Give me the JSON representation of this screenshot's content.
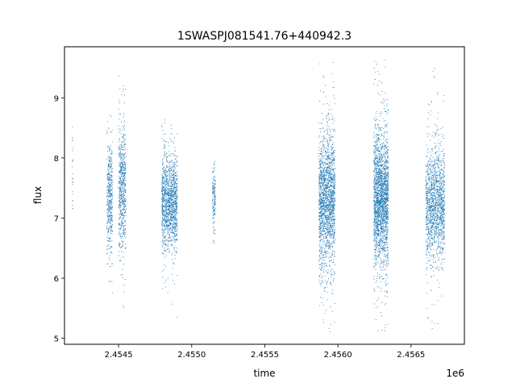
{
  "chart_data": {
    "type": "scatter",
    "title": "1SWASPJ081541.76+440942.3",
    "xlabel": "time",
    "ylabel": "flux",
    "x_offset_label": "1e6",
    "xlim": [
      2454130,
      2456865
    ],
    "ylim": [
      4.9,
      9.85
    ],
    "x_ticks": [
      {
        "value": 2454500,
        "label": "2.4545"
      },
      {
        "value": 2455000,
        "label": "2.4550"
      },
      {
        "value": 2455500,
        "label": "2.4555"
      },
      {
        "value": 2456000,
        "label": "2.4560"
      },
      {
        "value": 2456500,
        "label": "2.4565"
      }
    ],
    "y_ticks": [
      {
        "value": 5,
        "label": "5"
      },
      {
        "value": 6,
        "label": "6"
      },
      {
        "value": 7,
        "label": "7"
      },
      {
        "value": 8,
        "label": "8"
      },
      {
        "value": 9,
        "label": "9"
      }
    ],
    "grid": false,
    "marker_color": "#1f77b4",
    "series": [
      {
        "observing_seasons": [
          {
            "x_range": [
              2454184,
              2454186
            ],
            "y_center": 7.7,
            "y_spread": 0.5,
            "y_min": 7.1,
            "y_max": 8.65,
            "points": 25
          },
          {
            "x_range": [
              2454420,
              2454458
            ],
            "y_center": 7.35,
            "y_spread": 0.45,
            "y_min": 5.55,
            "y_max": 8.9,
            "points": 450
          },
          {
            "x_range": [
              2454500,
              2454550
            ],
            "y_center": 7.45,
            "y_spread": 0.55,
            "y_min": 5.15,
            "y_max": 9.55,
            "points": 650
          },
          {
            "x_range": [
              2454795,
              2454902
            ],
            "y_center": 7.25,
            "y_spread": 0.4,
            "y_min": 5.3,
            "y_max": 8.65,
            "points": 1400
          },
          {
            "x_range": [
              2455142,
              2455162
            ],
            "y_center": 7.35,
            "y_spread": 0.3,
            "y_min": 6.55,
            "y_max": 7.95,
            "points": 160
          },
          {
            "x_range": [
              2455870,
              2455980
            ],
            "y_center": 7.3,
            "y_spread": 0.55,
            "y_min": 5.1,
            "y_max": 9.65,
            "points": 1900
          },
          {
            "x_range": [
              2456245,
              2456345
            ],
            "y_center": 7.35,
            "y_spread": 0.55,
            "y_min": 5.1,
            "y_max": 9.65,
            "points": 2200
          },
          {
            "x_range": [
              2456600,
              2456730
            ],
            "y_center": 7.25,
            "y_spread": 0.45,
            "y_min": 5.15,
            "y_max": 9.6,
            "points": 1500
          }
        ]
      }
    ]
  }
}
